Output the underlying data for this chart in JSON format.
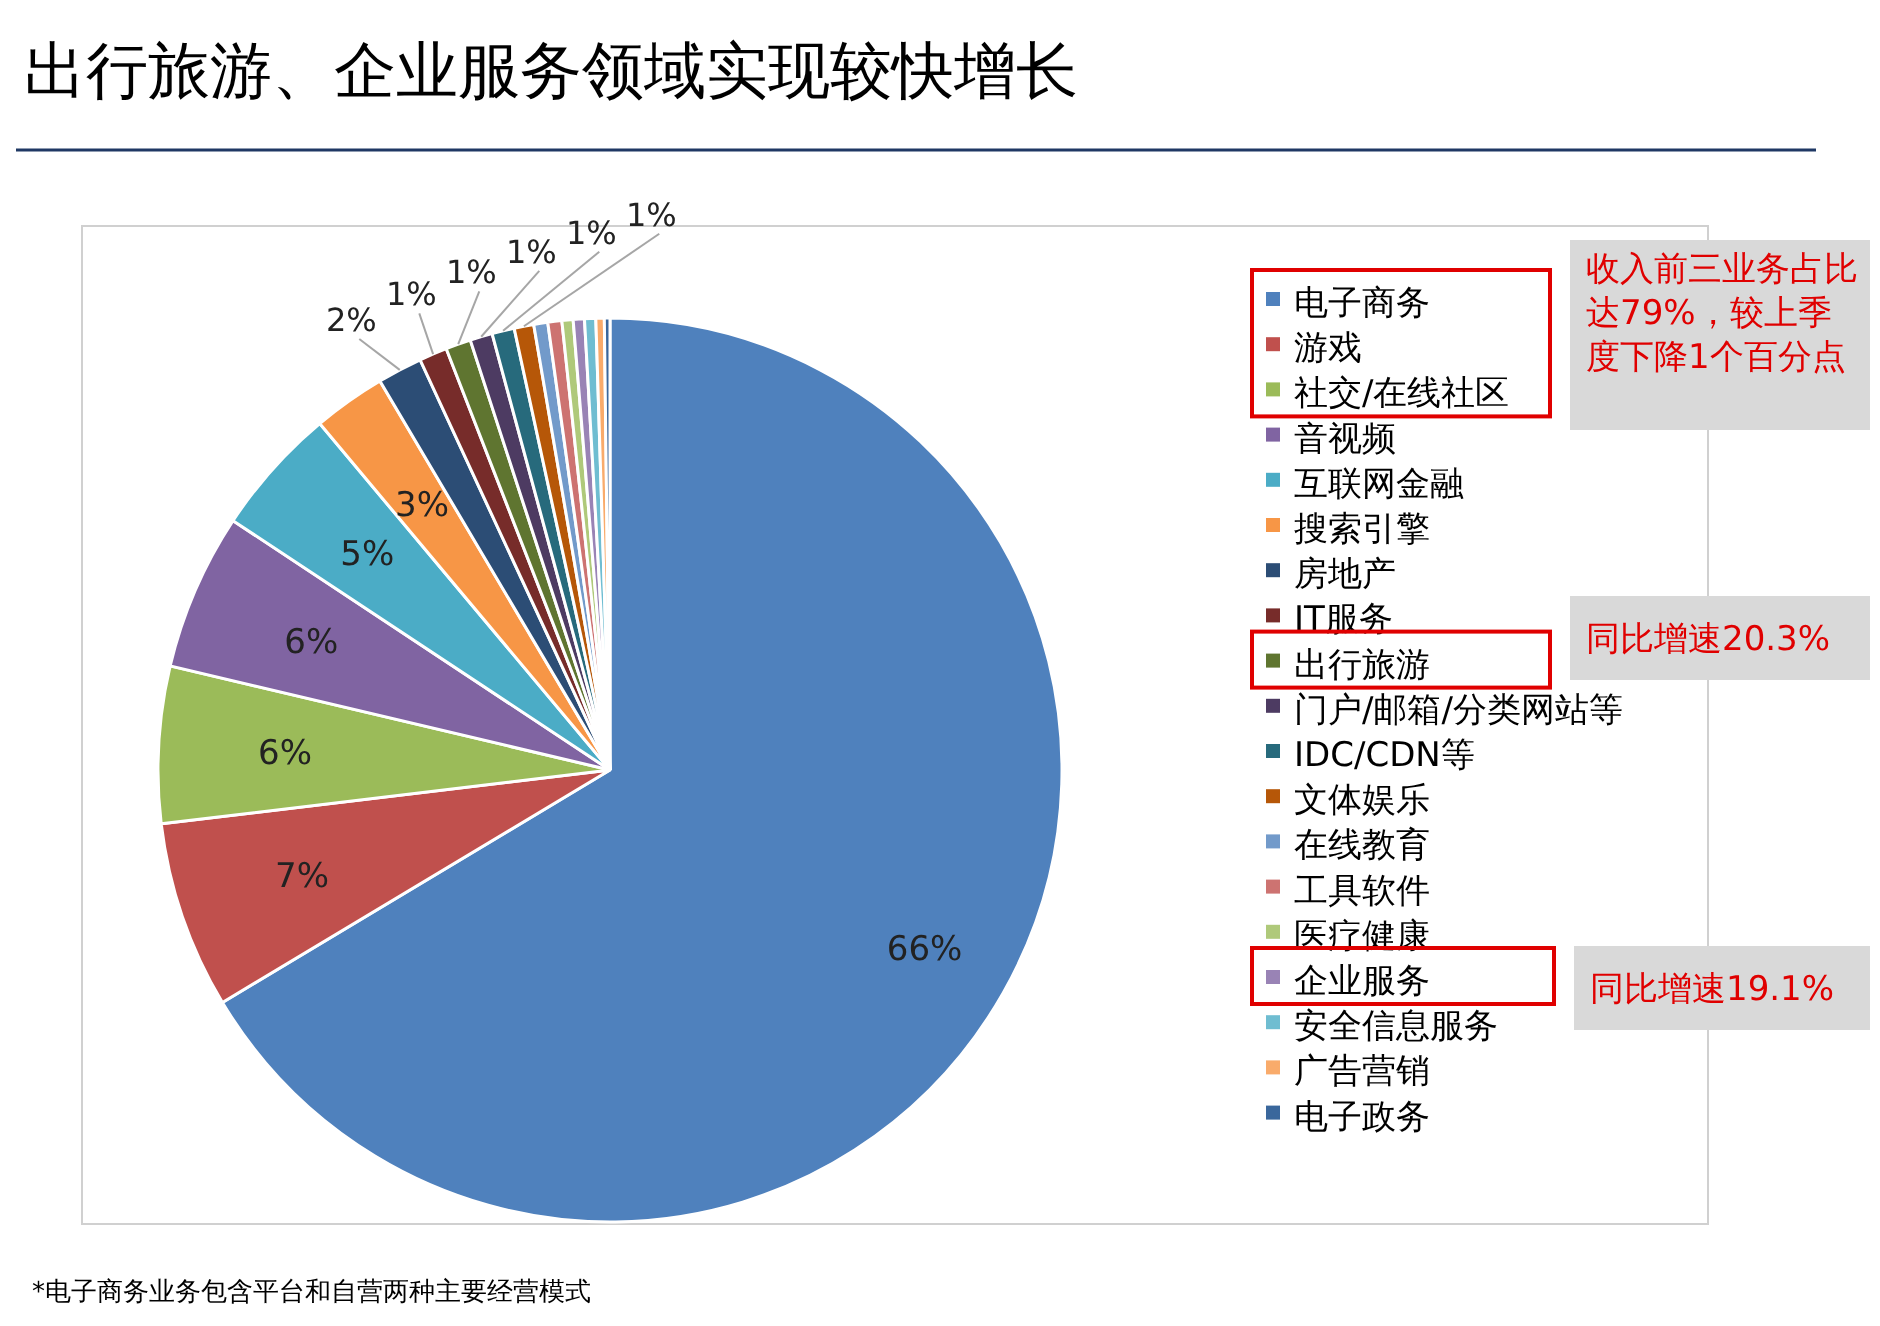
{
  "chart_data": {
    "type": "pie",
    "title": "出行旅游、企业服务领域实现较快增长",
    "categories": [
      "电子商务",
      "游戏",
      "社交/在线社区",
      "音视频",
      "互联网金融",
      "搜索引擎",
      "房地产",
      "IT服务",
      "出行旅游",
      "门户/邮箱/分类网站等",
      "IDC/CDN等",
      "文体娱乐",
      "在线教育",
      "工具软件",
      "医疗健康",
      "企业服务",
      "安全信息服务",
      "广告营销",
      "电子政务"
    ],
    "values": [
      66.4,
      6.7,
      5.6,
      5.6,
      4.6,
      2.6,
      1.6,
      1.0,
      0.9,
      0.8,
      0.8,
      0.7,
      0.5,
      0.5,
      0.4,
      0.4,
      0.4,
      0.3,
      0.2
    ],
    "value_labels": [
      "66%",
      "7%",
      "6%",
      "6%",
      "5%",
      "3%",
      "2%",
      "1%",
      "1%",
      "1%",
      "1%",
      "1%",
      null,
      null,
      null,
      null,
      null,
      null,
      null
    ],
    "colors": [
      "#4f81bd",
      "#c0504d",
      "#9bbb59",
      "#8064a2",
      "#4bacc6",
      "#f79646",
      "#2c4d75",
      "#772c2a",
      "#5f7530",
      "#4d3b62",
      "#276a7c",
      "#b65708",
      "#729aca",
      "#cd7371",
      "#afc97a",
      "#9983b5",
      "#6fbdd1",
      "#f9ab6b",
      "#3a679c"
    ],
    "legend": "right",
    "annotations": [
      "收入前三业务占比达79%，较上季度下降1个百分点",
      "同比增速20.3%",
      "同比增速19.1%",
      "*电子商务业务包含平台和自营两种主要经营模式"
    ]
  }
}
